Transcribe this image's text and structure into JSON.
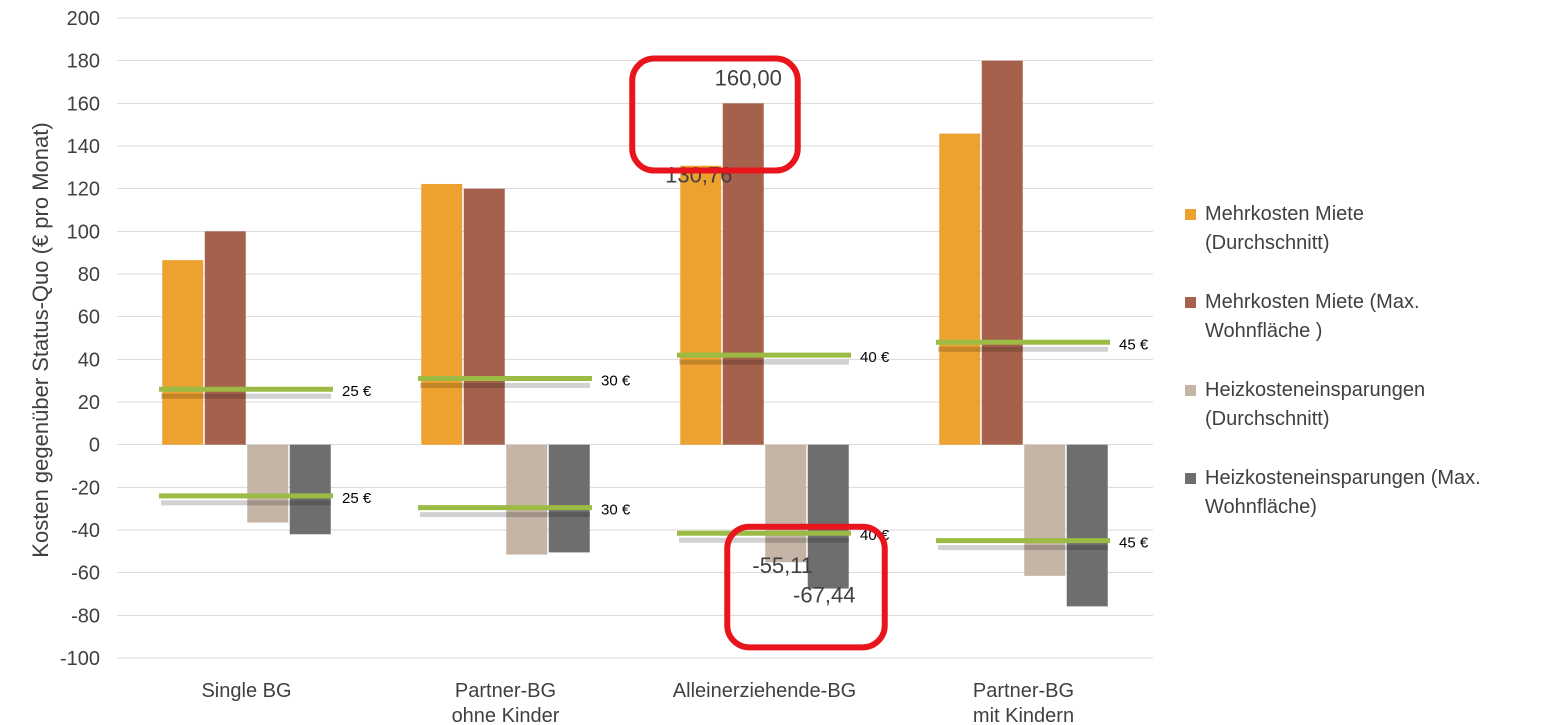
{
  "chart_data": {
    "type": "bar",
    "ylabel": "Kosten gegenüber Status-Quo (€ pro Monat)",
    "ylim": [
      -100,
      200
    ],
    "yticks": [
      200,
      180,
      160,
      140,
      120,
      100,
      80,
      60,
      40,
      20,
      0,
      -20,
      -40,
      -60,
      -80,
      -100
    ],
    "grid": true,
    "legend_position": "right",
    "categories": [
      {
        "line1": "Single BG",
        "line2": ""
      },
      {
        "line1": "Partner-BG",
        "line2": "ohne Kinder"
      },
      {
        "line1": "Alleinerziehende-BG",
        "line2": ""
      },
      {
        "line1": "Partner-BG",
        "line2": "mit Kindern"
      }
    ],
    "series": [
      {
        "name": "Mehrkosten Miete (Durchschnitt)",
        "legend_lines": [
          "Mehrkosten Miete",
          "(Durchschnitt)"
        ],
        "color": "#EDA230",
        "values": [
          86.5,
          122.2,
          130.76,
          145.8
        ]
      },
      {
        "name": "Mehrkosten Miete (Max. Wohnfläche )",
        "legend_lines": [
          "Mehrkosten Miete (Max.",
          "Wohnfläche )"
        ],
        "color": "#A5614B",
        "values": [
          100,
          120,
          160,
          180
        ]
      },
      {
        "name": "Heizkosteneinsparungen (Durchschnitt)",
        "legend_lines": [
          "Heizkosteneinsparungen",
          "(Durchschnitt)"
        ],
        "color": "#C4B5A6",
        "values": [
          -36.5,
          -51.5,
          -55.11,
          -61.5
        ]
      },
      {
        "name": "Heizkosteneinsparungen (Max. Wohnfläche)",
        "legend_lines": [
          "Heizkosteneinsparungen (Max.",
          "Wohnfläche)"
        ],
        "color": "#6E6E6E",
        "values": [
          -42,
          -50.5,
          -67.44,
          -75.8
        ]
      }
    ],
    "data_labels": [
      {
        "text": "160,00",
        "series": 1,
        "category": 2
      },
      {
        "text": "130,76",
        "series": 0,
        "category": 2
      },
      {
        "text": "-55,11",
        "series": 2,
        "category": 2
      },
      {
        "text": "-67,44",
        "series": 3,
        "category": 2
      }
    ],
    "reference_lines": {
      "color": "#9BBB45",
      "upper": [
        {
          "value": 26,
          "label": "25 €"
        },
        {
          "value": 31,
          "label": "30 €"
        },
        {
          "value": 42,
          "label": "40 €"
        },
        {
          "value": 48,
          "label": "45 €"
        }
      ],
      "lower": [
        {
          "value": -24,
          "label": "25 €"
        },
        {
          "value": -29.5,
          "label": "30 €"
        },
        {
          "value": -41.5,
          "label": "40 €"
        },
        {
          "value": -45,
          "label": "45 €"
        }
      ]
    },
    "highlight_color": "#E8161C"
  }
}
